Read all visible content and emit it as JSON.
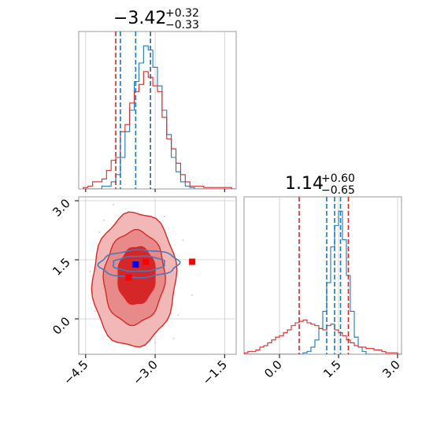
{
  "figure_type": "corner plot",
  "chart_data": [
    {
      "panel": "top-left marginal histogram",
      "type": "histogram",
      "title_main": "−3.42",
      "title_sup": "+0.32",
      "title_sub": "−0.33",
      "xlim": [
        -4.65,
        -1.25
      ],
      "ylim": [
        0,
        1.1
      ],
      "x_ticks": [
        -4.5,
        -3.0,
        -1.5
      ],
      "blue_quantiles": [
        -3.75,
        -3.42,
        -3.1
      ],
      "red_quantiles": [
        -3.85,
        -3.1
      ],
      "bin_edges_start": -4.55,
      "bin_width": 0.1,
      "series": [
        {
          "name": "",
          "color": "#1f77b4",
          "counts": [
            0,
            0,
            0,
            0,
            0.02,
            0.02,
            0.05,
            0.1,
            0.22,
            0.4,
            0.55,
            0.75,
            0.88,
            1.0,
            0.97,
            0.85,
            0.72,
            0.55,
            0.38,
            0.22,
            0.12,
            0.05,
            0.02,
            0.01,
            0,
            0,
            0,
            0,
            0,
            0,
            0,
            0,
            0,
            0
          ]
        },
        {
          "name": "",
          "color": "#d62728",
          "counts": [
            0.01,
            0.02,
            0.05,
            0.05,
            0.07,
            0.13,
            0.2,
            0.22,
            0.4,
            0.45,
            0.6,
            0.68,
            0.73,
            0.82,
            0.78,
            0.72,
            0.68,
            0.5,
            0.35,
            0.28,
            0.18,
            0.1,
            0.05,
            0.02,
            0.02,
            0.02,
            0.01,
            0.01,
            0.01,
            0.01,
            0.01,
            0.01,
            0,
            0
          ]
        }
      ]
    },
    {
      "panel": "bottom-right marginal histogram",
      "type": "histogram",
      "title_main": "1.14",
      "title_sup": "+0.60",
      "title_sub": "−0.65",
      "xlim": [
        -0.9,
        3.1
      ],
      "ylim": [
        0,
        1.1
      ],
      "x_ticks": [
        0.0,
        1.5,
        3.0
      ],
      "x_tick_labels": [
        "0.0",
        "1.5",
        "3.0"
      ],
      "blue_quantiles": [
        1.2,
        1.4,
        1.55
      ],
      "red_quantiles": [
        0.5,
        1.75
      ],
      "bin_edges_start": -0.9,
      "bin_width": 0.1,
      "series": [
        {
          "name": "",
          "color": "#1f77b4",
          "counts": [
            0,
            0,
            0,
            0,
            0,
            0,
            0,
            0,
            0,
            0,
            0,
            0,
            0,
            0,
            0,
            0.01,
            0.02,
            0.05,
            0.1,
            0.18,
            0.3,
            0.5,
            0.75,
            0.9,
            1.0,
            0.8,
            0.55,
            0.3,
            0.12,
            0.05,
            0.02,
            0,
            0,
            0,
            0,
            0,
            0,
            0,
            0,
            0
          ]
        },
        {
          "name": "",
          "color": "#d62728",
          "counts": [
            0.01,
            0.02,
            0.02,
            0.03,
            0.05,
            0.06,
            0.08,
            0.1,
            0.12,
            0.13,
            0.15,
            0.17,
            0.2,
            0.22,
            0.23,
            0.24,
            0.22,
            0.21,
            0.2,
            0.18,
            0.17,
            0.2,
            0.21,
            0.17,
            0.15,
            0.13,
            0.1,
            0.08,
            0.06,
            0.05,
            0.05,
            0.04,
            0.04,
            0.03,
            0.03,
            0.02,
            0.01,
            0.01,
            0.01,
            0
          ]
        }
      ]
    },
    {
      "panel": "bottom-left 2D contour",
      "type": "scatter",
      "xlim": [
        -4.65,
        -1.25
      ],
      "ylim": [
        -0.9,
        3.1
      ],
      "x_ticks": [
        -4.5,
        -3.0,
        -1.5
      ],
      "y_ticks": [
        0.0,
        1.5,
        3.0
      ],
      "y_tick_labels": [
        "0.0",
        "1.5",
        "3.0"
      ],
      "red_contours": [
        {
          "level": "outer",
          "fill": "#f2b8b8",
          "center": [
            -3.45,
            1.0
          ],
          "radii": [
            0.9,
            1.7
          ]
        },
        {
          "level": "middle",
          "fill": "#e98a8a",
          "center": [
            -3.45,
            1.05
          ],
          "radii": [
            0.65,
            1.2
          ]
        },
        {
          "level": "inner",
          "fill": "#d62728",
          "center": [
            -3.4,
            1.1
          ],
          "radii": [
            0.4,
            0.75
          ]
        }
      ],
      "blue_contours": [
        {
          "level": "outer",
          "center": [
            -3.35,
            1.4
          ],
          "radii": [
            0.85,
            0.35
          ]
        },
        {
          "level": "inner",
          "center": [
            -3.35,
            1.4
          ],
          "radii": [
            0.55,
            0.2
          ]
        }
      ],
      "markers": [
        {
          "color": "#0000ff",
          "x": -3.42,
          "y": 1.38
        },
        {
          "color": "#ff0000",
          "x": -3.2,
          "y": 1.45
        },
        {
          "color": "#ff0000",
          "x": -2.2,
          "y": 1.45
        },
        {
          "color": "#ff0000",
          "x": -3.57,
          "y": 1.05
        }
      ],
      "crosshair": {
        "x": -3.0,
        "y": 1.5
      }
    }
  ],
  "tick_labels_x": [
    "−4.5",
    "−3.0",
    "−1.5"
  ]
}
